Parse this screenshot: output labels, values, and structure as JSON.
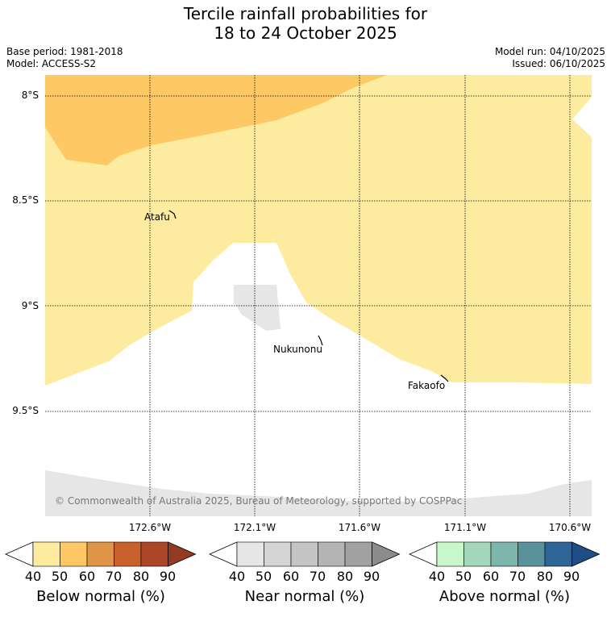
{
  "title": {
    "line1": "Tercile rainfall probabilities for",
    "line2": "18 to 24 October 2025"
  },
  "meta": {
    "base_period": "Base period: 1981-2018",
    "model": "Model: ACCESS-S2",
    "model_run": "Model run: 04/10/2025",
    "issued": "Issued: 06/10/2025"
  },
  "map": {
    "lat_labels": [
      "8°S",
      "8.5°S",
      "9°S",
      "9.5°S"
    ],
    "lon_labels": [
      "172.6°W",
      "172.1°W",
      "171.6°W",
      "171.1°W",
      "170.6°W"
    ],
    "places": [
      "Atafu",
      "Nukunonu",
      "Fakaofo"
    ],
    "copyright": "© Commonwealth of Australia 2025, Bureau of Meteorology, supported by COSPPac"
  },
  "legend": {
    "ticks": [
      "40",
      "50",
      "60",
      "70",
      "80",
      "90"
    ],
    "below": {
      "title": "Below normal (%)",
      "colors": [
        "#fdec9f",
        "#fec965",
        "#e09447",
        "#c9612d",
        "#ac4628",
        "#953a22"
      ]
    },
    "near": {
      "title": "Near normal (%)",
      "colors": [
        "#e6e6e6",
        "#d5d5d5",
        "#c5c5c5",
        "#b4b4b4",
        "#a1a1a1",
        "#8c8c8c"
      ]
    },
    "above": {
      "title": "Above normal (%)",
      "colors": [
        "#c8f7cc",
        "#a3d8bc",
        "#7db6ad",
        "#5a929c",
        "#2f6496",
        "#1f4e86"
      ]
    }
  }
}
